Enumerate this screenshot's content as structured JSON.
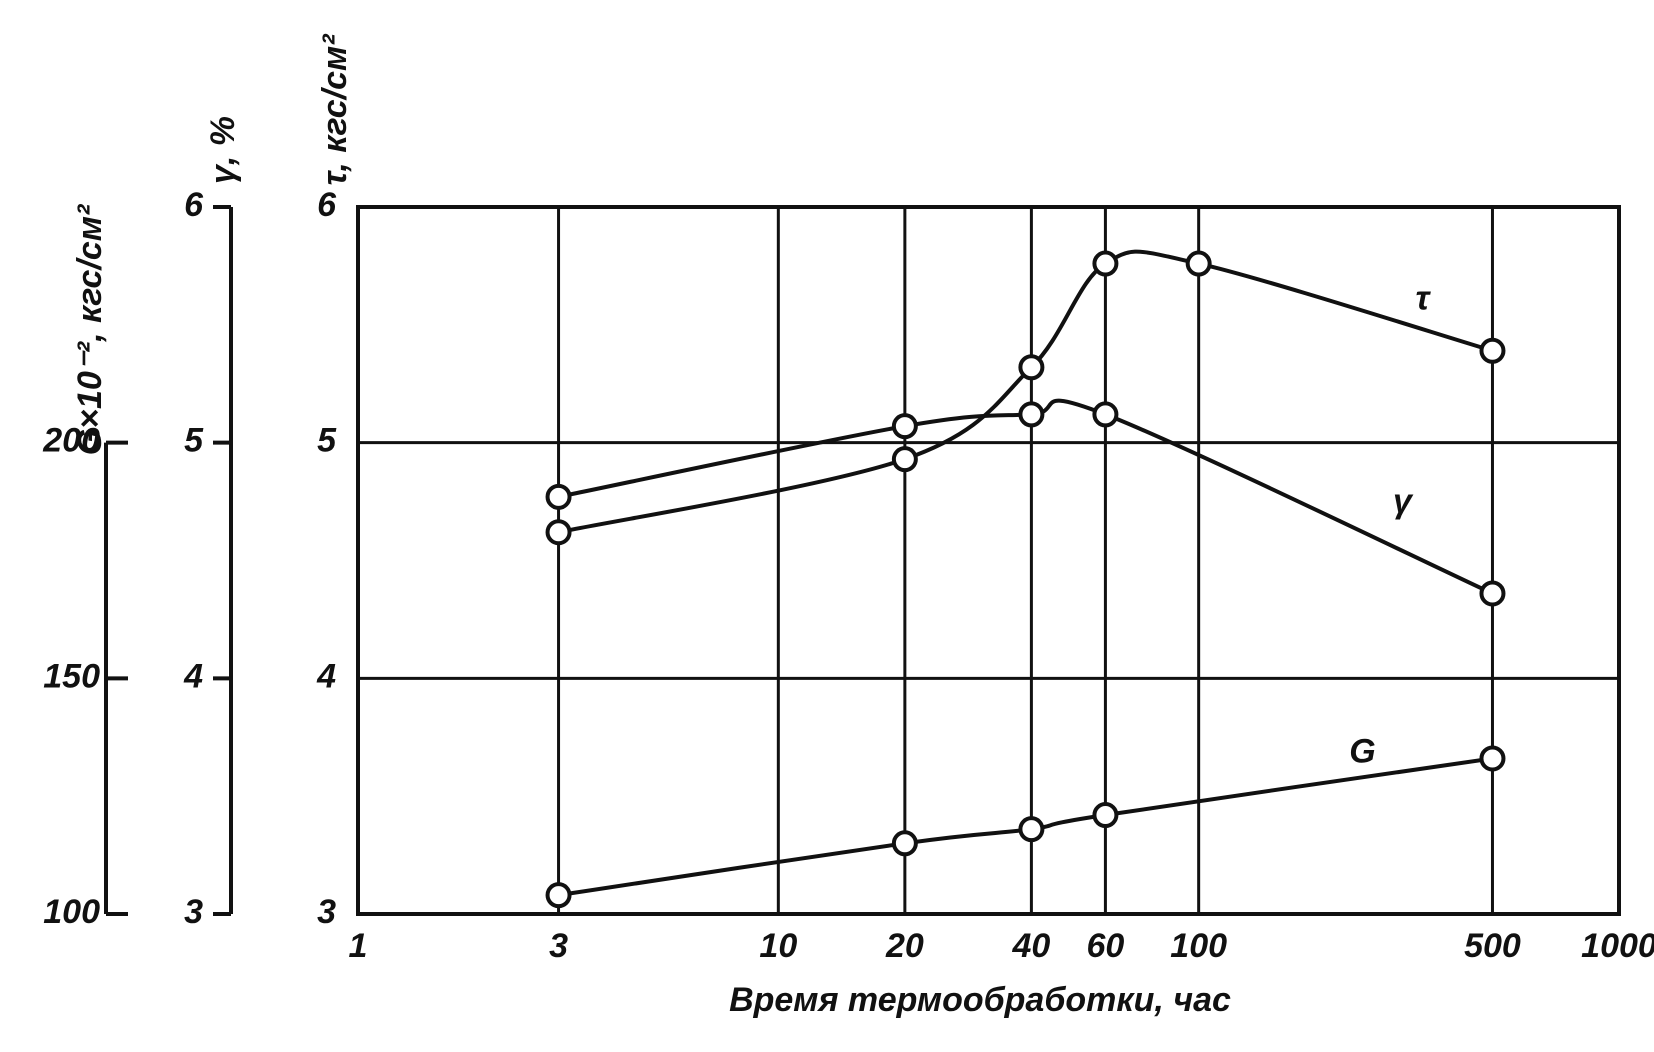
{
  "chart_data": {
    "type": "line",
    "x_label": "Время термообработки, час",
    "y_label": "τ, кгс/см²",
    "y2_label": "γ, %",
    "y3_label": "G×10⁻², кгс/см²",
    "xscale": "log",
    "xlim": [
      1,
      1000
    ],
    "xticks": [
      1,
      3,
      10,
      20,
      40,
      60,
      100,
      500,
      1000
    ],
    "ylim": [
      3,
      6
    ],
    "yticks": [
      3,
      4,
      5,
      6
    ],
    "y2lim": [
      3,
      6
    ],
    "y2ticks": [
      3,
      4,
      5,
      6
    ],
    "y3lim": [
      100,
      250
    ],
    "y3ticks": [
      100,
      150,
      200
    ],
    "grid": true,
    "series": [
      {
        "name": "τ",
        "color": "#111111",
        "x": [
          3,
          20,
          40,
          60,
          100,
          500
        ],
        "values": [
          4.62,
          4.93,
          5.32,
          5.76,
          5.76,
          5.39
        ]
      },
      {
        "name": "γ",
        "color": "#111111",
        "axis": "y2",
        "x": [
          3,
          20,
          40,
          60,
          500
        ],
        "values": [
          4.77,
          5.07,
          5.12,
          5.12,
          4.36
        ]
      },
      {
        "name": "G",
        "color": "#111111",
        "axis": "y3",
        "x": [
          3,
          20,
          40,
          60,
          500
        ],
        "values": [
          104,
          115,
          118,
          121,
          133
        ]
      }
    ]
  }
}
